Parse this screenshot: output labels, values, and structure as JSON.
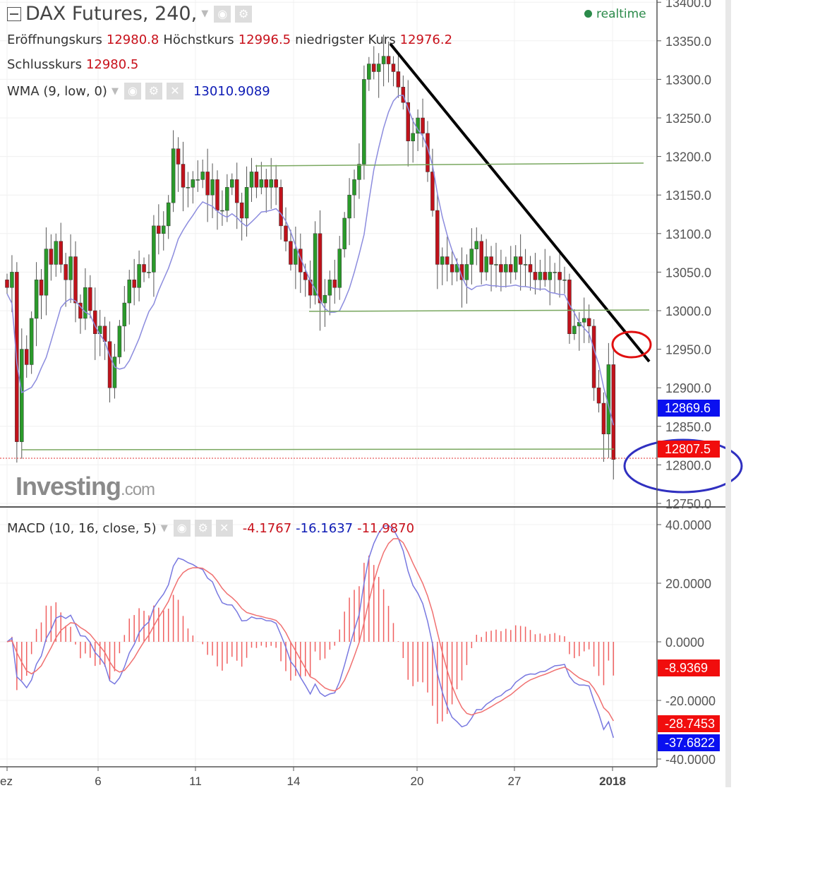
{
  "header": {
    "title": "DAX Futures, 240,",
    "realtime": "realtime",
    "ohlc": {
      "open_label": "Eröffnungskurs",
      "open": "12980.8",
      "high_label": "Höchstkurs",
      "high": "12996.5",
      "low_label": "niedrigster Kurs",
      "low": "12976.2",
      "close_label": "Schlusskurs",
      "close": "12980.5"
    },
    "wma": {
      "label": "WMA (9, low, 0)",
      "value": "13010.9089"
    },
    "macd": {
      "label": "MACD (10, 16, close, 5)",
      "hist": "-4.1767",
      "macd": "-16.1637",
      "signal": "-11.9870"
    }
  },
  "logo": {
    "brand": "Investing",
    "suffix": ".com"
  },
  "badges": {
    "wma": "12869.6",
    "price": "12807.5",
    "hist": "-8.9369",
    "signal": "-28.7453",
    "macd": "-37.6822"
  },
  "colors": {
    "up": "#2a9a2a",
    "down": "#c0121b",
    "wma": "#8c8cde",
    "macd": "#7878e0",
    "signal": "#f07070",
    "hist": "#f06060",
    "badge_red": "#f10d0d",
    "badge_blue": "#0a10f0"
  },
  "chart_data": {
    "type": "candlestick",
    "title": "DAX Futures, 240",
    "price_axis": {
      "ticks": [
        "13400.0",
        "13350.0",
        "13300.0",
        "13250.0",
        "13200.0",
        "13150.0",
        "13100.0",
        "13050.0",
        "13000.0",
        "12950.0",
        "12900.0",
        "12850.0",
        "12800.0",
        "12750.0"
      ],
      "range": [
        12750,
        13400
      ]
    },
    "macd_axis": {
      "ticks": [
        "40.0000",
        "20.0000",
        "0.0000",
        "-20.0000",
        "-40.0000"
      ],
      "range": [
        -40,
        40
      ]
    },
    "x_ticks": [
      "ez",
      "6",
      "11",
      "14",
      "20",
      "27",
      "2018"
    ],
    "closes": [
      13030,
      13050,
      12830,
      12950,
      12930,
      12990,
      13040,
      13020,
      13080,
      13060,
      13090,
      13060,
      13040,
      13070,
      13010,
      12990,
      13030,
      13000,
      12970,
      12980,
      12960,
      12900,
      12940,
      12980,
      13010,
      13040,
      13030,
      13060,
      13050,
      13050,
      13110,
      13100,
      13110,
      13140,
      13210,
      13190,
      13160,
      13160,
      13170,
      13170,
      13180,
      13150,
      13170,
      13130,
      13130,
      13160,
      13170,
      13140,
      13120,
      13160,
      13180,
      13160,
      13170,
      13160,
      13170,
      13160,
      13110,
      13090,
      13060,
      13080,
      13050,
      13040,
      13020,
      13100,
      13010,
      13020,
      13040,
      13030,
      13080,
      13120,
      13150,
      13170,
      13190,
      13300,
      13320,
      13310,
      13320,
      13330,
      13320,
      13310,
      13290,
      13270,
      13220,
      13230,
      13250,
      13230,
      13180,
      13130,
      13060,
      13070,
      13060,
      13050,
      13060,
      13040,
      13060,
      13080,
      13090,
      13050,
      13070,
      13060,
      13060,
      13050,
      13060,
      13050,
      13070,
      13060,
      13060,
      13050,
      13040,
      13050,
      13040,
      13050,
      13050,
      13040,
      13040,
      12970,
      12980,
      12985,
      12990,
      12980,
      12900,
      12880,
      12840,
      12930,
      12807
    ],
    "indicators": [
      "WMA (9, low, 0)",
      "MACD (10, 16, close, 5)"
    ],
    "annotations": [
      "downtrend line",
      "support line 13190",
      "support line 13000",
      "support line 12815",
      "red ellipse",
      "blue ellipse"
    ]
  }
}
